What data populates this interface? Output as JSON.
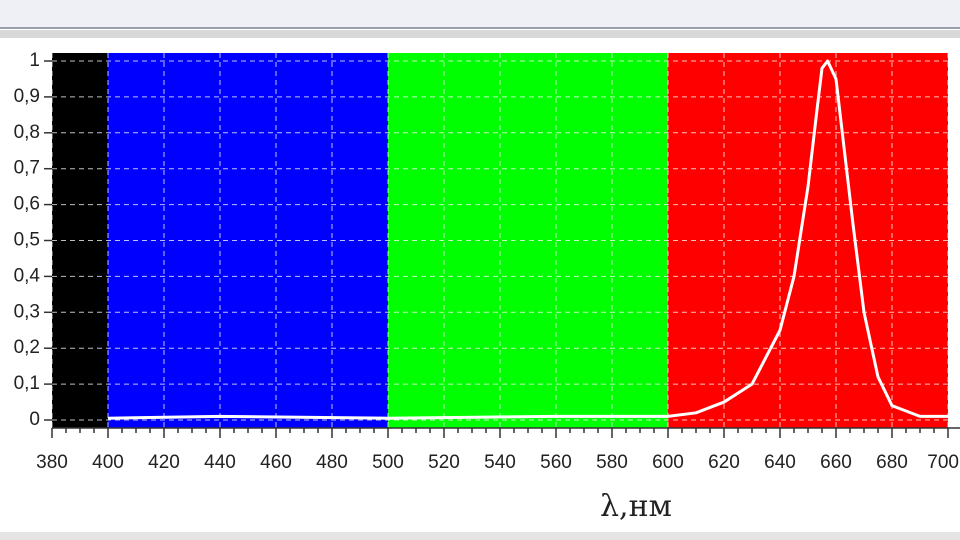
{
  "chart_data": {
    "type": "line",
    "x_label": "λ,нм",
    "x": [
      400,
      440,
      500,
      560,
      600,
      610,
      620,
      630,
      640,
      645,
      650,
      653,
      655,
      657,
      660,
      663,
      666,
      670,
      675,
      680,
      690,
      700
    ],
    "series": [
      {
        "color": "#ffffff",
        "values": [
          0.005,
          0.01,
          0.005,
          0.01,
          0.01,
          0.02,
          0.05,
          0.1,
          0.25,
          0.4,
          0.65,
          0.85,
          0.98,
          1.0,
          0.95,
          0.75,
          0.55,
          0.3,
          0.12,
          0.04,
          0.01,
          0.01
        ]
      }
    ],
    "bands": [
      {
        "from": 380,
        "to": 400,
        "color": "#000000"
      },
      {
        "from": 400,
        "to": 500,
        "color": "#0000ff"
      },
      {
        "from": 500,
        "to": 600,
        "color": "#00ff00"
      },
      {
        "from": 600,
        "to": 700,
        "color": "#ff0000"
      }
    ],
    "xlim": [
      380,
      700
    ],
    "ylim": [
      0,
      1
    ],
    "xticks": [
      380,
      400,
      420,
      440,
      460,
      480,
      500,
      520,
      540,
      560,
      580,
      600,
      620,
      640,
      660,
      680,
      700
    ],
    "yticks": [
      0,
      {
        "value": 0.1,
        "label": "0,1"
      },
      {
        "value": 0.2,
        "label": "0,2"
      },
      {
        "value": 0.3,
        "label": "0,3"
      },
      {
        "value": 0.4,
        "label": "0,4"
      },
      {
        "value": 0.5,
        "label": "0,5"
      },
      {
        "value": 0.6,
        "label": "0,6"
      },
      {
        "value": 0.7,
        "label": "0,7"
      },
      {
        "value": 0.8,
        "label": "0,8"
      },
      {
        "value": 0.9,
        "label": "0,9"
      },
      1
    ],
    "grid": true
  }
}
